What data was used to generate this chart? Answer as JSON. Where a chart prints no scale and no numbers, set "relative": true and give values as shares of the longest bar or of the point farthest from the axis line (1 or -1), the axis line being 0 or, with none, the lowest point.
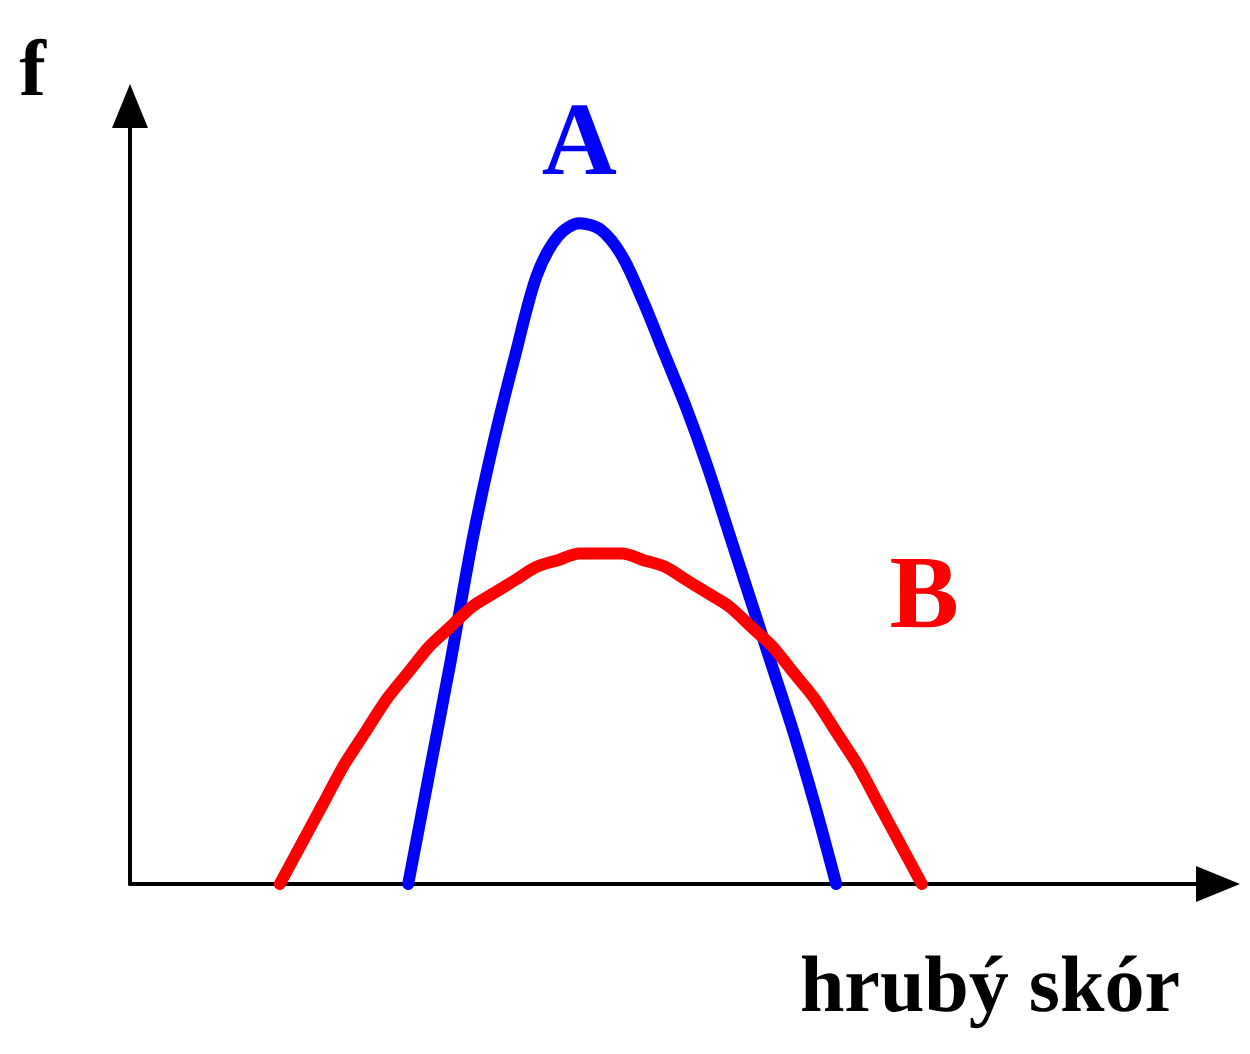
{
  "chart_data": {
    "type": "line",
    "relative": true,
    "xlabel": "hrubý skór",
    "ylabel": "f",
    "legend": false,
    "grid": false,
    "marker": "none",
    "line_style": "solid",
    "categories": [
      null,
      null,
      null,
      null,
      null,
      null,
      null,
      null,
      null,
      null,
      null,
      null,
      null,
      null,
      null,
      null,
      null,
      null,
      null,
      null,
      null,
      null,
      null,
      null,
      null,
      null,
      null,
      null,
      null,
      null,
      null,
      null,
      null,
      null,
      null,
      null,
      null,
      null,
      null,
      null,
      null,
      null,
      null,
      null,
      null,
      null,
      null,
      null,
      null,
      null,
      null
    ],
    "series": [
      {
        "name": "A",
        "color": "#0000ff",
        "values": [
          null,
          null,
          null,
          null,
          null,
          null,
          null,
          null,
          null,
          null,
          null,
          null,
          null,
          0,
          0.17,
          0.34,
          0.52,
          0.67,
          0.8,
          0.92,
          0.98,
          1.0,
          0.99,
          0.95,
          0.88,
          0.8,
          0.72,
          0.63,
          0.53,
          0.43,
          0.33,
          0.23,
          0.12,
          0,
          null,
          null,
          null,
          null,
          null,
          null,
          null,
          null,
          null,
          null,
          null,
          null,
          null,
          null,
          null,
          null,
          null
        ]
      },
      {
        "name": "B",
        "color": "#ff0000",
        "values": [
          null,
          null,
          null,
          null,
          null,
          null,
          null,
          0,
          0.06,
          0.12,
          0.18,
          0.23,
          0.28,
          0.32,
          0.36,
          0.39,
          0.42,
          0.44,
          0.46,
          0.48,
          0.49,
          0.5,
          0.5,
          0.5,
          0.49,
          0.48,
          0.46,
          0.44,
          0.42,
          0.39,
          0.36,
          0.32,
          0.28,
          0.23,
          0.18,
          0.12,
          0.06,
          0,
          null,
          null,
          null,
          null,
          null,
          null,
          null,
          null,
          null,
          null,
          null,
          null,
          null
        ]
      }
    ]
  }
}
